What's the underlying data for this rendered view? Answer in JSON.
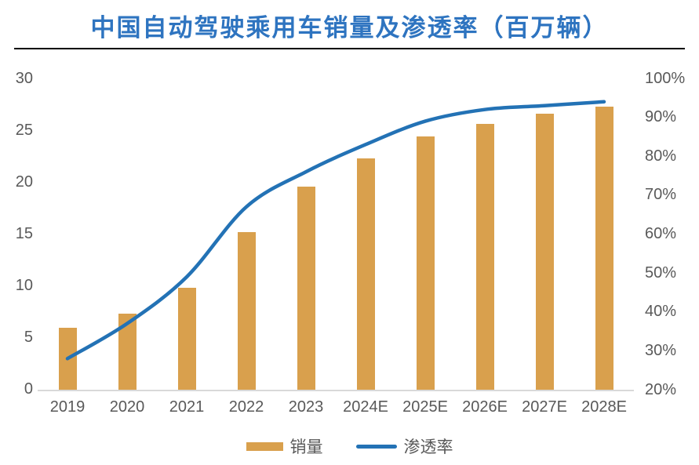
{
  "title": "中国自动驾驶乘用车销量及渗透率（百万辆）",
  "colors": {
    "title": "#2E74C0",
    "bar": "#D9A04D",
    "line": "#2372B5",
    "axis-text": "#595959",
    "baseline": "#D9D9D9",
    "divider": "#000000"
  },
  "legend": {
    "sales_label": "销量",
    "penetration_label": "渗透率"
  },
  "chart_data": {
    "type": "bar+line",
    "title": "中国自动驾驶乘用车销量及渗透率（百万辆）",
    "categories": [
      "2019",
      "2020",
      "2021",
      "2022",
      "2023",
      "2024E",
      "2025E",
      "2026E",
      "2027E",
      "2028E"
    ],
    "series": [
      {
        "name": "销量",
        "type": "bar",
        "axis": "left",
        "unit": "百万辆",
        "values": [
          6.0,
          7.3,
          9.8,
          15.2,
          19.6,
          22.3,
          24.4,
          25.6,
          26.6,
          27.3
        ]
      },
      {
        "name": "渗透率",
        "type": "line",
        "axis": "right",
        "unit": "%",
        "values": [
          28,
          37,
          49,
          67,
          76,
          83,
          89,
          92,
          93,
          94
        ]
      }
    ],
    "left_axis": {
      "min": 0,
      "max": 30,
      "tick_labels": [
        "30",
        "25",
        "20",
        "15",
        "10",
        "5",
        "0"
      ]
    },
    "right_axis": {
      "min": 20,
      "max": 100,
      "tick_labels": [
        "100%",
        "90%",
        "80%",
        "70%",
        "60%",
        "50%",
        "40%",
        "30%",
        "20%"
      ]
    },
    "grid": false,
    "legend_position": "bottom",
    "line_smoothing": true
  }
}
